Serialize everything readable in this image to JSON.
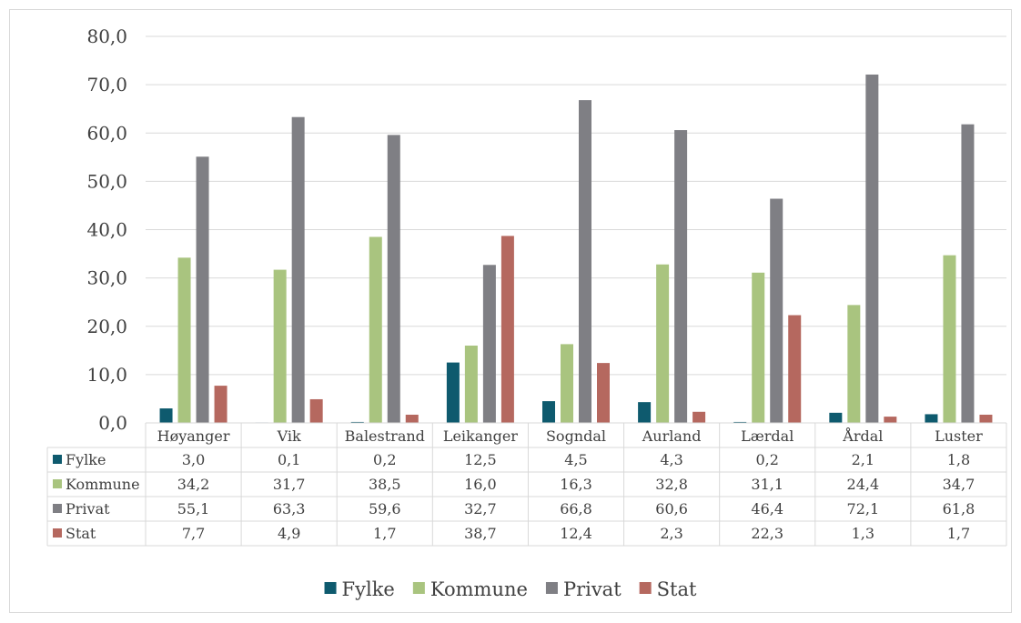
{
  "chart_data": {
    "type": "bar",
    "categories": [
      "Høyanger",
      "Vik",
      "Balestrand",
      "Leikanger",
      "Sogndal",
      "Aurland",
      "Lærdal",
      "Årdal",
      "Luster"
    ],
    "series": [
      {
        "name": "Fylke",
        "color": "#0e5a6e",
        "values": [
          3.0,
          0.1,
          0.2,
          12.5,
          4.5,
          4.3,
          0.2,
          2.1,
          1.8
        ],
        "labels": [
          "3,0",
          "0,1",
          "0,2",
          "12,5",
          "4,5",
          "4,3",
          "0,2",
          "2,1",
          "1,8"
        ]
      },
      {
        "name": "Kommune",
        "color": "#a9c47f",
        "values": [
          34.2,
          31.7,
          38.5,
          16.0,
          16.3,
          32.8,
          31.1,
          24.4,
          34.7
        ],
        "labels": [
          "34,2",
          "31,7",
          "38,5",
          "16,0",
          "16,3",
          "32,8",
          "31,1",
          "24,4",
          "34,7"
        ]
      },
      {
        "name": "Privat",
        "color": "#7f7f84",
        "values": [
          55.1,
          63.3,
          59.6,
          32.7,
          66.8,
          60.6,
          46.4,
          72.1,
          61.8
        ],
        "labels": [
          "55,1",
          "63,3",
          "59,6",
          "32,7",
          "66,8",
          "60,6",
          "46,4",
          "72,1",
          "61,8"
        ]
      },
      {
        "name": "Stat",
        "color": "#b5685f",
        "values": [
          7.7,
          4.9,
          1.7,
          38.7,
          12.4,
          2.3,
          22.3,
          1.3,
          1.7
        ],
        "labels": [
          "7,7",
          "4,9",
          "1,7",
          "38,7",
          "12,4",
          "2,3",
          "22,3",
          "1,3",
          "1,7"
        ]
      }
    ],
    "yticks": [
      "0,0",
      "10,0",
      "20,0",
      "30,0",
      "40,0",
      "50,0",
      "60,0",
      "70,0",
      "80,0"
    ],
    "ylim": [
      0,
      80
    ],
    "grid": true,
    "legend": "bottom",
    "data_table": true
  }
}
